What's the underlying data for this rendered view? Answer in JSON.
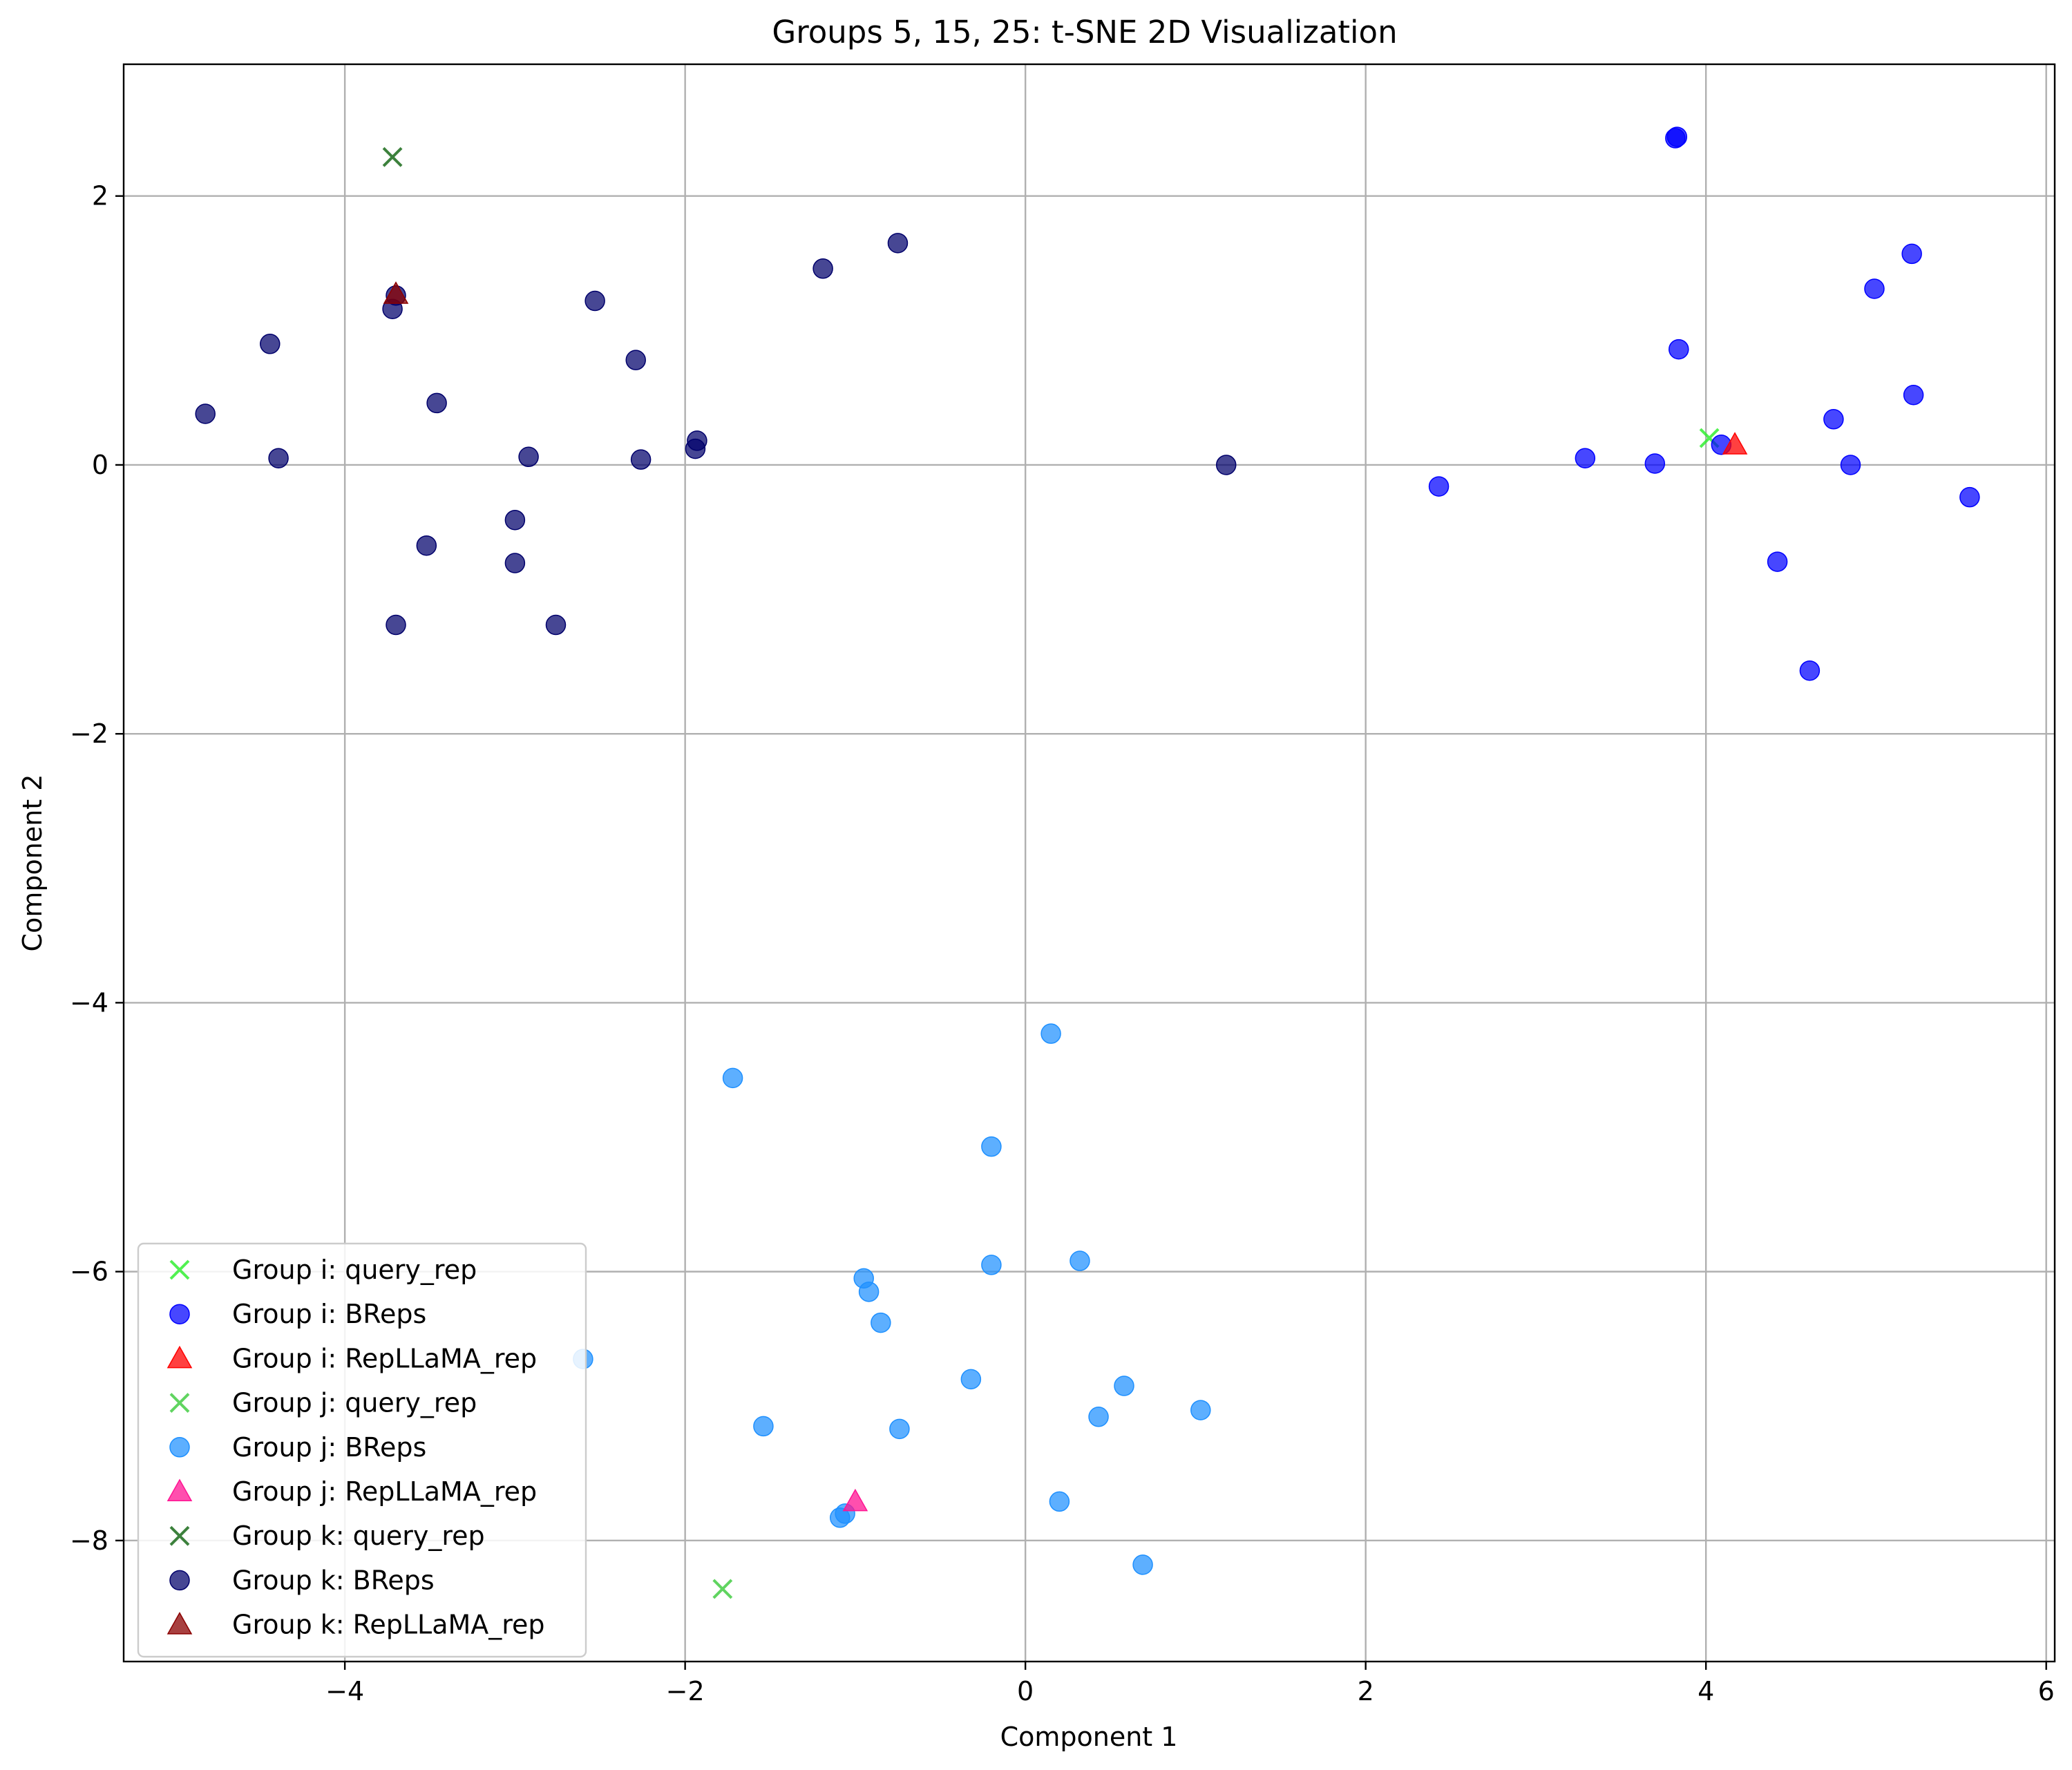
{
  "chart_data": {
    "type": "scatter",
    "title": "Groups 5, 15, 25: t-SNE 2D Visualization",
    "xlabel": "Component 1",
    "ylabel": "Component 2",
    "xlim": [
      -5.3,
      6.05
    ],
    "ylim": [
      -8.9,
      2.98
    ],
    "xticks": [
      -4,
      -2,
      0,
      2,
      4,
      6
    ],
    "yticks": [
      2,
      0,
      -2,
      -4,
      -6,
      -8
    ],
    "x_tick_labels": [
      "−4",
      "−2",
      "0",
      "2",
      "4",
      "6"
    ],
    "y_tick_labels": [
      "2",
      "0",
      "−2",
      "−4",
      "−6",
      "−8"
    ],
    "grid": true,
    "legend_position": "lower-left",
    "series": [
      {
        "name": "Group i: query_rep",
        "marker": "x",
        "color": "#33ee33",
        "points": [
          [
            4.02,
            0.2
          ]
        ]
      },
      {
        "name": "Group i: BReps",
        "marker": "o",
        "color": "#0000ff",
        "points": [
          [
            3.82,
            2.43
          ],
          [
            3.83,
            2.44
          ],
          [
            5.21,
            1.57
          ],
          [
            4.99,
            1.31
          ],
          [
            3.84,
            0.86
          ],
          [
            5.22,
            0.52
          ],
          [
            4.75,
            0.34
          ],
          [
            4.09,
            0.15
          ],
          [
            3.29,
            0.05
          ],
          [
            3.7,
            0.01
          ],
          [
            4.85,
            0.0
          ],
          [
            2.43,
            -0.16
          ],
          [
            5.55,
            -0.24
          ],
          [
            4.42,
            -0.72
          ],
          [
            4.61,
            -1.53
          ]
        ]
      },
      {
        "name": "Group i: RepLLaMA_rep",
        "marker": "^",
        "color": "#ff0000",
        "points": [
          [
            4.17,
            0.15
          ]
        ]
      },
      {
        "name": "Group j: query_rep",
        "marker": "x",
        "color": "#44cc44",
        "points": [
          [
            -1.78,
            -8.36
          ]
        ]
      },
      {
        "name": "Group j: BReps",
        "marker": "o",
        "color": "#1e90ff",
        "points": [
          [
            0.15,
            -4.23
          ],
          [
            -1.72,
            -4.56
          ],
          [
            -0.2,
            -5.07
          ],
          [
            0.32,
            -5.92
          ],
          [
            -0.2,
            -5.95
          ],
          [
            -0.95,
            -6.05
          ],
          [
            -0.92,
            -6.15
          ],
          [
            -0.85,
            -6.38
          ],
          [
            -2.6,
            -6.65
          ],
          [
            -0.32,
            -6.8
          ],
          [
            0.58,
            -6.85
          ],
          [
            1.03,
            -7.03
          ],
          [
            0.43,
            -7.08
          ],
          [
            -1.54,
            -7.15
          ],
          [
            -0.74,
            -7.17
          ],
          [
            0.2,
            -7.71
          ],
          [
            -1.06,
            -7.8
          ],
          [
            -1.09,
            -7.83
          ],
          [
            0.69,
            -8.18
          ]
        ]
      },
      {
        "name": "Group j: RepLLaMA_rep",
        "marker": "^",
        "color": "#ff1493",
        "points": [
          [
            -1.0,
            -7.71
          ]
        ]
      },
      {
        "name": "Group k: query_rep",
        "marker": "x",
        "color": "#1a6b1a",
        "points": [
          [
            -3.72,
            2.29
          ]
        ]
      },
      {
        "name": "Group k: BReps",
        "marker": "o",
        "color": "#00006b",
        "points": [
          [
            -0.75,
            1.65
          ],
          [
            -1.19,
            1.46
          ],
          [
            -3.7,
            1.26
          ],
          [
            -3.72,
            1.16
          ],
          [
            -2.53,
            1.22
          ],
          [
            -4.44,
            0.9
          ],
          [
            -2.29,
            0.78
          ],
          [
            -3.46,
            0.46
          ],
          [
            -4.82,
            0.38
          ],
          [
            -1.93,
            0.18
          ],
          [
            -1.94,
            0.12
          ],
          [
            -4.39,
            0.05
          ],
          [
            -2.92,
            0.06
          ],
          [
            -2.26,
            0.04
          ],
          [
            1.18,
            0.0
          ],
          [
            -3.0,
            -0.41
          ],
          [
            -3.52,
            -0.6
          ],
          [
            -3.0,
            -0.73
          ],
          [
            -3.7,
            -1.19
          ],
          [
            -2.76,
            -1.19
          ]
        ]
      },
      {
        "name": "Group k: RepLLaMA_rep",
        "marker": "^",
        "color": "#8b0000",
        "points": [
          [
            -3.7,
            1.27
          ]
        ]
      }
    ]
  }
}
